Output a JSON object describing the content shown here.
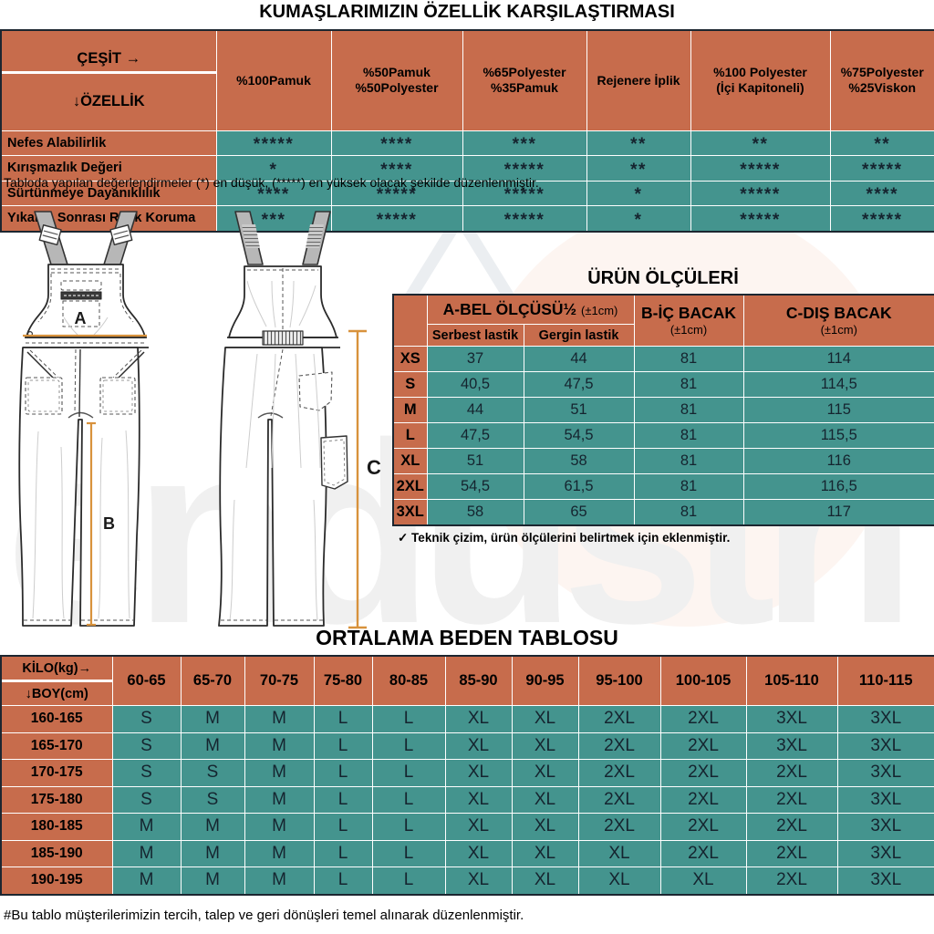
{
  "watermark": {
    "text": "endustri"
  },
  "fabric_comparison": {
    "title": "KUMAŞLARIMIZIN ÖZELLİK KARŞILAŞTIRMASI",
    "corner_top": "ÇEŞİT →",
    "corner_bottom": "↓ÖZELLİK",
    "columns": [
      "%100Pamuk",
      "%50Pamuk\n%50Polyester",
      "%65Polyester\n%35Pamuk",
      "Rejenere İplik",
      "%100 Polyester\n(İçi Kapitoneli)",
      "%75Polyester\n%25Viskon"
    ],
    "rows": [
      {
        "label": "Nefes Alabilirlik",
        "ratings": [
          "*****",
          "****",
          "***",
          "**",
          "**",
          "**"
        ]
      },
      {
        "label": "Kırışmazlık Değeri",
        "ratings": [
          "*",
          "****",
          "*****",
          "**",
          "*****",
          "*****"
        ]
      },
      {
        "label": "Sürtünmeye Dayanıklılık",
        "ratings": [
          "****",
          "*****",
          "*****",
          "*",
          "*****",
          "****"
        ]
      },
      {
        "label": "Yıkama Sonrası Renk Koruma",
        "ratings": [
          "***",
          "*****",
          "*****",
          "*",
          "*****",
          "*****"
        ]
      }
    ],
    "note": "Tabloda yapılan değerlendirmeler (*) en düşük, (*****) en yüksek olacak şekilde düzenlenmiştir."
  },
  "product_measurements": {
    "title": "ÜRÜN ÖLÇÜLERİ",
    "waist_header": "A-BEL ÖLÇÜSÜ½",
    "waist_tolerance": "(±1cm)",
    "sub_columns": [
      "Serbest lastik",
      "Gergin lastik"
    ],
    "inner_leg_header": "B-İÇ BACAK",
    "inner_leg_tolerance": "(±1cm)",
    "outer_leg_header": "C-DIŞ BACAK",
    "outer_leg_tolerance": "(±1cm)",
    "rows": [
      {
        "size": "XS",
        "values": [
          "37",
          "44",
          "81",
          "114"
        ]
      },
      {
        "size": "S",
        "values": [
          "40,5",
          "47,5",
          "81",
          "114,5"
        ]
      },
      {
        "size": "M",
        "values": [
          "44",
          "51",
          "81",
          "115"
        ]
      },
      {
        "size": "L",
        "values": [
          "47,5",
          "54,5",
          "81",
          "115,5"
        ]
      },
      {
        "size": "XL",
        "values": [
          "51",
          "58",
          "81",
          "116"
        ]
      },
      {
        "size": "2XL",
        "values": [
          "54,5",
          "61,5",
          "81",
          "116,5"
        ]
      },
      {
        "size": "3XL",
        "values": [
          "58",
          "65",
          "81",
          "117"
        ]
      }
    ],
    "note": "✓ Teknik çizim, ürün ölçülerini belirtmek için eklenmiştir."
  },
  "size_chart": {
    "title": "ORTALAMA BEDEN TABLOSU",
    "corner_top": "KİLO(kg)→",
    "corner_bottom": "↓BOY(cm)",
    "weight_columns": [
      "60-65",
      "65-70",
      "70-75",
      "75-80",
      "80-85",
      "85-90",
      "90-95",
      "95-100",
      "100-105",
      "105-110",
      "110-115"
    ],
    "rows": [
      {
        "height": "160-165",
        "sizes": [
          "S",
          "M",
          "M",
          "L",
          "L",
          "XL",
          "XL",
          "2XL",
          "2XL",
          "3XL",
          "3XL"
        ]
      },
      {
        "height": "165-170",
        "sizes": [
          "S",
          "M",
          "M",
          "L",
          "L",
          "XL",
          "XL",
          "2XL",
          "2XL",
          "3XL",
          "3XL"
        ]
      },
      {
        "height": "170-175",
        "sizes": [
          "S",
          "S",
          "M",
          "L",
          "L",
          "XL",
          "XL",
          "2XL",
          "2XL",
          "2XL",
          "3XL"
        ]
      },
      {
        "height": "175-180",
        "sizes": [
          "S",
          "S",
          "M",
          "L",
          "L",
          "XL",
          "XL",
          "2XL",
          "2XL",
          "2XL",
          "3XL"
        ]
      },
      {
        "height": "180-185",
        "sizes": [
          "M",
          "M",
          "M",
          "L",
          "L",
          "XL",
          "XL",
          "2XL",
          "2XL",
          "2XL",
          "3XL"
        ]
      },
      {
        "height": "185-190",
        "sizes": [
          "M",
          "M",
          "M",
          "L",
          "L",
          "XL",
          "XL",
          "XL",
          "2XL",
          "2XL",
          "3XL"
        ]
      },
      {
        "height": "190-195",
        "sizes": [
          "M",
          "M",
          "M",
          "L",
          "L",
          "XL",
          "XL",
          "XL",
          "XL",
          "2XL",
          "3XL"
        ]
      }
    ],
    "note": "#Bu tablo müşterilerimizin tercih, talep ve geri dönüşleri temel alınarak düzenlenmiştir."
  },
  "diagram": {
    "label_a": "A",
    "label_b": "B",
    "label_c": "C"
  },
  "colors": {
    "orange": "#c76c4c",
    "teal": "#44948e",
    "dark_text": "#15242f",
    "measure_line": "#d8923c"
  }
}
